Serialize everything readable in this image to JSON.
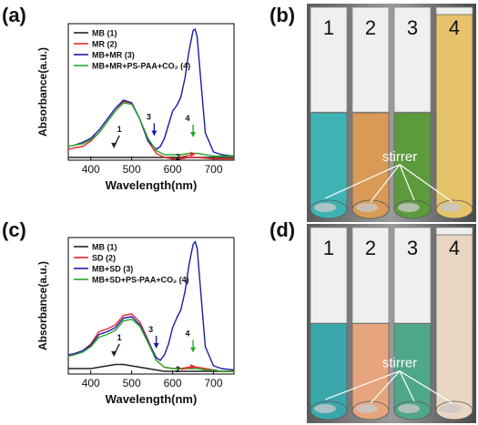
{
  "panels": {
    "a": "(a)",
    "b": "(b)",
    "c": "(c)",
    "d": "(d)"
  },
  "chart_data": [
    {
      "type": "line",
      "panel": "(a)",
      "title": "",
      "xlabel": "Wavelength(nm)",
      "ylabel": "Absorbance(a.u.)",
      "xlim": [
        345,
        750
      ],
      "ylim": [
        0,
        1
      ],
      "xticks": [
        400,
        500,
        600,
        700
      ],
      "legend_position": "top-left",
      "series": [
        {
          "name": "MB (1)",
          "color": "#222222",
          "x": [
            345,
            360,
            380,
            400,
            420,
            440,
            460,
            480,
            500,
            520,
            540,
            560,
            580,
            600,
            620,
            640,
            660,
            680,
            700,
            720,
            750
          ],
          "y": [
            0.02,
            0.02,
            0.02,
            0.02,
            0.02,
            0.02,
            0.02,
            0.02,
            0.02,
            0.02,
            0.02,
            0.02,
            0.02,
            0.02,
            0.02,
            0.02,
            0.02,
            0.02,
            0.02,
            0.02,
            0.02
          ]
        },
        {
          "name": "MR (2)",
          "color": "#e8292b",
          "x": [
            345,
            360,
            380,
            400,
            420,
            440,
            460,
            480,
            500,
            520,
            540,
            560,
            580,
            600,
            620,
            640,
            660,
            680,
            700,
            720,
            750
          ],
          "y": [
            0.08,
            0.09,
            0.1,
            0.14,
            0.2,
            0.28,
            0.36,
            0.43,
            0.42,
            0.3,
            0.14,
            0.05,
            0.02,
            0.01,
            0.01,
            0.02,
            0.02,
            0.015,
            0.01,
            0.01,
            0.01
          ]
        },
        {
          "name": "MB+MR (3)",
          "color": "#1a1aa8",
          "x": [
            345,
            360,
            380,
            400,
            420,
            440,
            460,
            480,
            500,
            520,
            540,
            560,
            570,
            580,
            590,
            600,
            610,
            620,
            630,
            640,
            650,
            655,
            660,
            670,
            680,
            700,
            720,
            750
          ],
          "y": [
            0.1,
            0.11,
            0.13,
            0.16,
            0.22,
            0.3,
            0.38,
            0.44,
            0.42,
            0.3,
            0.14,
            0.08,
            0.1,
            0.16,
            0.26,
            0.36,
            0.4,
            0.46,
            0.6,
            0.8,
            0.95,
            0.96,
            0.9,
            0.55,
            0.2,
            0.06,
            0.04,
            0.03
          ]
        },
        {
          "name": "MB+MR+PS-PAA+CO₂ (4)",
          "color": "#2aa82a",
          "x": [
            345,
            360,
            380,
            400,
            420,
            440,
            460,
            480,
            500,
            520,
            540,
            560,
            580,
            600,
            620,
            640,
            660,
            680,
            700,
            720,
            750
          ],
          "y": [
            0.1,
            0.11,
            0.12,
            0.15,
            0.2,
            0.28,
            0.36,
            0.42,
            0.41,
            0.3,
            0.16,
            0.07,
            0.04,
            0.04,
            0.04,
            0.05,
            0.05,
            0.04,
            0.03,
            0.03,
            0.03
          ]
        }
      ],
      "annotations": [
        {
          "text": "1",
          "x": 470,
          "y": 0.1,
          "arrow_color": "#222222"
        },
        {
          "text": "3",
          "x": 555,
          "y": 0.19,
          "arrow_color": "#1a1aa8"
        },
        {
          "text": "4",
          "x": 650,
          "y": 0.18,
          "arrow_color": "#2aa82a"
        },
        {
          "text": "2",
          "x": 625,
          "y": 0.03,
          "arrow_color": "#e8292b"
        }
      ]
    },
    {
      "type": "line",
      "panel": "(c)",
      "title": "",
      "xlabel": "Wavelength(nm)",
      "ylabel": "Absorbance(a.u.)",
      "xlim": [
        345,
        750
      ],
      "ylim": [
        0,
        1
      ],
      "xticks": [
        400,
        500,
        600,
        700
      ],
      "legend_position": "top-left",
      "series": [
        {
          "name": "MB (1)",
          "color": "#222222",
          "x": [
            345,
            360,
            380,
            400,
            420,
            440,
            460,
            480,
            500,
            520,
            540,
            560,
            580,
            600,
            620,
            640,
            660,
            680,
            700,
            720,
            750
          ],
          "y": [
            0.04,
            0.04,
            0.04,
            0.04,
            0.05,
            0.06,
            0.07,
            0.07,
            0.06,
            0.05,
            0.04,
            0.03,
            0.02,
            0.02,
            0.02,
            0.02,
            0.02,
            0.02,
            0.02,
            0.02,
            0.02
          ]
        },
        {
          "name": "SD  (2)",
          "color": "#e8292b",
          "x": [
            345,
            360,
            380,
            400,
            420,
            440,
            460,
            480,
            500,
            520,
            540,
            560,
            580,
            600,
            620,
            640,
            660,
            680,
            700,
            720,
            750
          ],
          "y": [
            0.14,
            0.15,
            0.17,
            0.22,
            0.31,
            0.33,
            0.36,
            0.43,
            0.44,
            0.38,
            0.25,
            0.1,
            0.05,
            0.04,
            0.04,
            0.05,
            0.05,
            0.04,
            0.03,
            0.02,
            0.02
          ]
        },
        {
          "name": "MB+SD (3)",
          "color": "#1a1aa8",
          "x": [
            345,
            360,
            380,
            400,
            420,
            440,
            460,
            480,
            500,
            520,
            540,
            560,
            570,
            580,
            590,
            600,
            610,
            620,
            630,
            640,
            650,
            655,
            660,
            670,
            680,
            700,
            720,
            750
          ],
          "y": [
            0.14,
            0.15,
            0.17,
            0.21,
            0.29,
            0.31,
            0.34,
            0.41,
            0.42,
            0.36,
            0.24,
            0.12,
            0.1,
            0.14,
            0.22,
            0.34,
            0.41,
            0.47,
            0.6,
            0.8,
            0.95,
            0.97,
            0.92,
            0.56,
            0.2,
            0.06,
            0.04,
            0.03
          ]
        },
        {
          "name": "MB+SD+PS-PAA+CO₂ (4)",
          "color": "#2aa82a",
          "x": [
            345,
            360,
            380,
            400,
            420,
            440,
            460,
            480,
            500,
            520,
            540,
            560,
            580,
            600,
            620,
            640,
            660,
            680,
            700,
            720,
            750
          ],
          "y": [
            0.13,
            0.14,
            0.16,
            0.2,
            0.27,
            0.29,
            0.32,
            0.39,
            0.4,
            0.35,
            0.23,
            0.1,
            0.05,
            0.04,
            0.04,
            0.04,
            0.04,
            0.03,
            0.03,
            0.02,
            0.02
          ]
        }
      ],
      "annotations": [
        {
          "text": "1",
          "x": 470,
          "y": 0.14,
          "arrow_color": "#222222"
        },
        {
          "text": "3",
          "x": 560,
          "y": 0.2,
          "arrow_color": "#1a1aa8"
        },
        {
          "text": "4",
          "x": 650,
          "y": 0.17,
          "arrow_color": "#2aa82a"
        },
        {
          "text": "2",
          "x": 625,
          "y": 0.04,
          "arrow_color": "#e8292b"
        }
      ]
    }
  ],
  "photos": [
    {
      "panel": "(b)",
      "tube_labels": [
        "1",
        "2",
        "3",
        "4"
      ],
      "stirrer_label": "stirrer",
      "tube_colors": [
        "#3fb3b4",
        "#d89a55",
        "#5c9a3c",
        "#e6c36a"
      ]
    },
    {
      "panel": "(d)",
      "tube_labels": [
        "1",
        "2",
        "3",
        "4"
      ],
      "stirrer_label": "stirrer",
      "tube_colors": [
        "#3aa7ad",
        "#e7a57d",
        "#4fa78a",
        "#e8d5c2"
      ]
    }
  ]
}
